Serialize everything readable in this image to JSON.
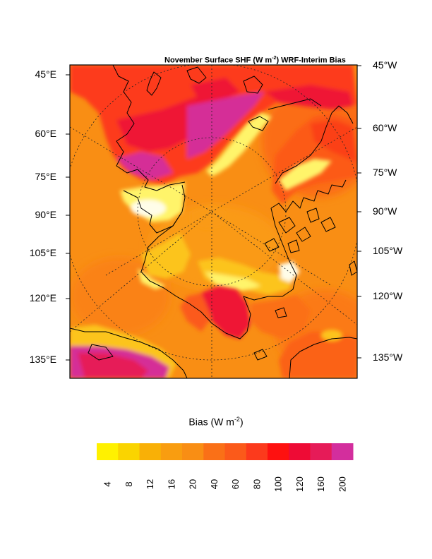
{
  "title": {
    "main": "November Surface SHF (W m",
    "sup": "-2",
    "tail": ") WRF-Interim Bias"
  },
  "left_labels": [
    "45°E",
    "60°E",
    "75°E",
    "90°E",
    "105°E",
    "120°E",
    "135°E"
  ],
  "right_labels": [
    "45°W",
    "60°W",
    "75°W",
    "90°W",
    "105°W",
    "120°W",
    "135°W"
  ],
  "colorbar": {
    "label_main": "Bias (W m",
    "label_sup": "-2",
    "label_tail": ")",
    "tick_labels": [
      "4",
      "8",
      "12",
      "16",
      "20",
      "40",
      "60",
      "80",
      "100",
      "120",
      "160",
      "200"
    ],
    "colors": [
      "#fff100",
      "#fad400",
      "#f9b006",
      "#f99d10",
      "#f98e14",
      "#fa7017",
      "#fb5a1a",
      "#fc3a1c",
      "#fe1110",
      "#ee0b35",
      "#e61b58",
      "#d32e9d"
    ]
  },
  "map_colors": {
    "background": "#f98e14",
    "ocean_base": "#fa8a15",
    "land_warm": "#fb6d18",
    "land_hot": "#fd4119",
    "hot_red": "#ef1535",
    "magenta": "#d52f97",
    "ice_light": "#fcc41a",
    "ice_yellow": "#fff46a",
    "ice_white": "#fffde8",
    "coast": "#000000"
  }
}
